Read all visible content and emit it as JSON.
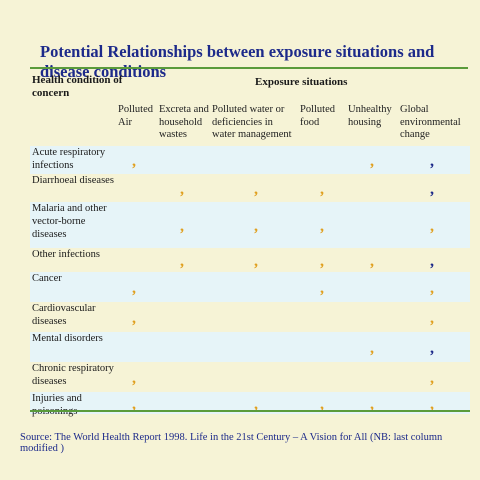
{
  "title": "Potential Relationships between exposure situations and disease conditions",
  "health_header": "Health condition of concern",
  "exposure_header": "Exposure situations",
  "columns": [
    {
      "label": "Polluted Air"
    },
    {
      "label": "Excreta and household wastes"
    },
    {
      "label": "Polluted water or deficiencies in water management"
    },
    {
      "label": "Polluted food"
    },
    {
      "label": "Unhealthy housing"
    },
    {
      "label": "Global environmental change"
    }
  ],
  "mark_glyph": ",",
  "colors": {
    "mark_default": "#e0a020",
    "mark_emphasis": "#1d2a8a",
    "title": "#1d2a8a",
    "rule": "#5a9b3b"
  },
  "rows": [
    {
      "label": "Acute respiratory infections",
      "marks": [
        1,
        0,
        0,
        0,
        1,
        2
      ]
    },
    {
      "label": "Diarrhoeal diseases",
      "marks": [
        0,
        1,
        1,
        1,
        0,
        2
      ]
    },
    {
      "label": "Malaria and other vector-borne diseases",
      "marks": [
        0,
        1,
        1,
        1,
        0,
        1
      ]
    },
    {
      "label": "Other infections",
      "marks": [
        0,
        1,
        1,
        1,
        1,
        2
      ]
    },
    {
      "label": "Cancer",
      "marks": [
        1,
        0,
        0,
        1,
        0,
        1
      ]
    },
    {
      "label": "Cardiovascular diseases",
      "marks": [
        1,
        0,
        0,
        0,
        0,
        1
      ]
    },
    {
      "label": "Mental disorders",
      "marks": [
        0,
        0,
        0,
        0,
        1,
        2
      ]
    },
    {
      "label": "Chronic respiratory diseases",
      "marks": [
        1,
        0,
        0,
        0,
        0,
        1
      ]
    },
    {
      "label": "Injuries and poisonings",
      "marks": [
        1,
        0,
        1,
        1,
        1,
        1
      ]
    }
  ],
  "source": "Source: The World Health Report 1998. Life in the 21st  Century – A Vision for All (NB: last column modified )"
}
